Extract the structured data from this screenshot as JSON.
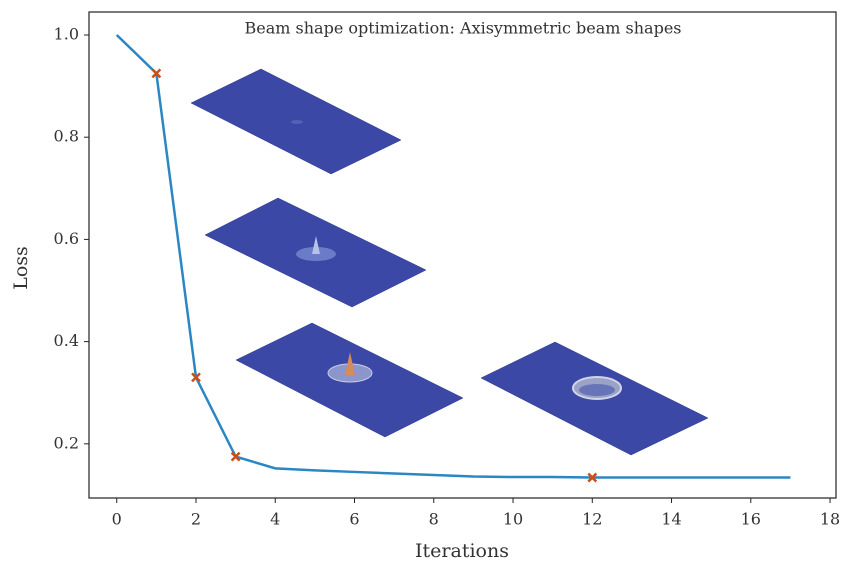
{
  "chart_data": {
    "type": "line",
    "title": "Beam shape optimization: Axisymmetric beam shapes",
    "x_label": "Iterations",
    "y_label": "Loss",
    "x": [
      0,
      1,
      2,
      3,
      4,
      5,
      6,
      7,
      8,
      9,
      10,
      11,
      12,
      13,
      14,
      15,
      16,
      17
    ],
    "series": [
      {
        "color": "#2b87c4",
        "values": [
          1.0,
          0.925,
          0.33,
          0.175,
          0.152,
          0.148,
          0.145,
          0.142,
          0.139,
          0.136,
          0.135,
          0.135,
          0.134,
          0.134,
          0.134,
          0.134,
          0.134,
          0.134
        ]
      }
    ],
    "markers": {
      "color": "#c4501c",
      "x": [
        1,
        2,
        3,
        12
      ],
      "values": [
        0.925,
        0.33,
        0.175,
        0.134
      ]
    },
    "xlim": [
      -0.7,
      18.15
    ],
    "ylim": [
      0.094,
      1.045
    ],
    "xticks": [
      0,
      2,
      4,
      6,
      8,
      10,
      12,
      14,
      16,
      18
    ],
    "yticks": [
      0.2,
      0.4,
      0.6,
      0.8,
      {
        "value": 1,
        "label": "1.0"
      }
    ]
  }
}
